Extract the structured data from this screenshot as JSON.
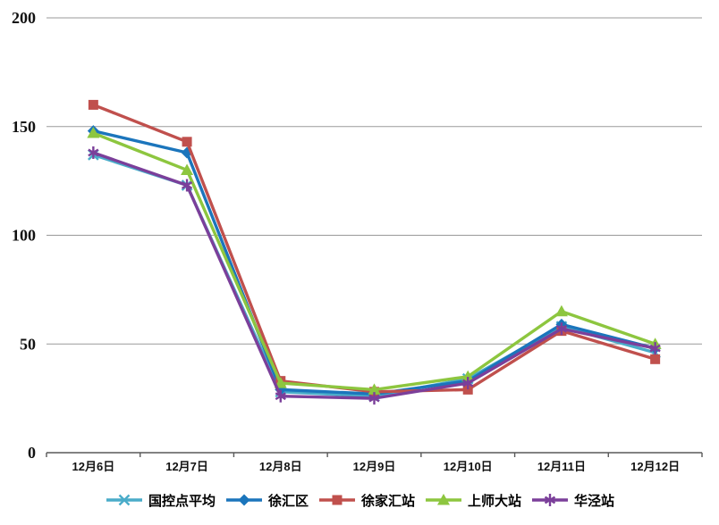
{
  "chart_data": {
    "type": "line",
    "title": "",
    "xlabel": "",
    "ylabel": "",
    "categories": [
      "12月6日",
      "12月7日",
      "12月8日",
      "12月9日",
      "12月10日",
      "12月11日",
      "12月12日"
    ],
    "series": [
      {
        "name": "国控点平均",
        "color": "#4AACC9",
        "marker": "x",
        "values": [
          137,
          123,
          28,
          26,
          34,
          58,
          46
        ]
      },
      {
        "name": "徐汇区",
        "color": "#1B75BC",
        "marker": "diamond",
        "values": [
          148,
          138,
          29,
          27,
          33,
          59,
          48
        ]
      },
      {
        "name": "徐家汇站",
        "color": "#C0504D",
        "marker": "square",
        "values": [
          160,
          143,
          33,
          28,
          29,
          56,
          43
        ]
      },
      {
        "name": "上师大站",
        "color": "#8DC63F",
        "marker": "triangle",
        "values": [
          147,
          130,
          32,
          29,
          35,
          65,
          50
        ]
      },
      {
        "name": "华泾站",
        "color": "#7B3F9A",
        "marker": "asterisk",
        "values": [
          138,
          123,
          26,
          25,
          32,
          57,
          48
        ]
      }
    ],
    "ylim": [
      0,
      200
    ],
    "yticks": [
      0,
      50,
      100,
      150,
      200
    ],
    "grid": true,
    "legend_position": "bottom",
    "colors": {
      "gridline": "#9a9a9a",
      "axis_line": "#595959",
      "text": "#111111",
      "background": "#ffffff"
    }
  }
}
